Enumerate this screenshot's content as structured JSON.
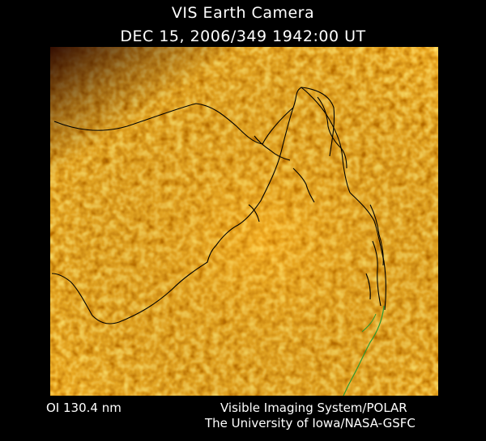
{
  "header": {
    "camera_title": "VIS Earth Camera",
    "timestamp": "DEC 15, 2006/349 1942:00 UT"
  },
  "footer": {
    "wavelength": "OI  130.4 nm",
    "instrument": "Visible Imaging System/POLAR",
    "institution": "The University of Iowa/NASA-GSFC"
  },
  "image": {
    "palette": {
      "dark": "#3a0a00",
      "mid": "#b84a00",
      "bright": "#ffd24a"
    },
    "coastline_color": "#000000",
    "terminator_color": "#2f9a2f"
  }
}
